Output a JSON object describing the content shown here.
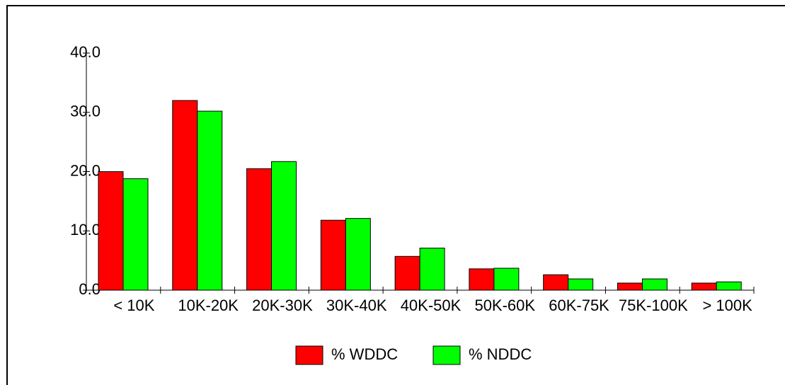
{
  "chart_data": {
    "type": "bar",
    "categories": [
      "< 10K",
      "10K-20K",
      "20K-30K",
      "30K-40K",
      "40K-50K",
      "50K-60K",
      "60K-75K",
      "75K-100K",
      "> 100K"
    ],
    "series": [
      {
        "name": "% WDDC",
        "color": "#ff0000",
        "values": [
          20.0,
          32.0,
          20.5,
          11.8,
          5.7,
          3.6,
          2.6,
          1.2,
          1.2
        ]
      },
      {
        "name": "% NDDC",
        "color": "#00ff00",
        "values": [
          18.8,
          30.2,
          21.7,
          12.1,
          7.1,
          3.7,
          1.9,
          1.9,
          1.4
        ]
      }
    ],
    "ylim": [
      0,
      40
    ],
    "yticks": [
      {
        "value": 0,
        "label": "0.0"
      },
      {
        "value": 10,
        "label": "10.0"
      },
      {
        "value": 20,
        "label": "20.0"
      },
      {
        "value": 30,
        "label": "30.0"
      },
      {
        "value": 40,
        "label": "40.0"
      }
    ],
    "legend": "bottom"
  }
}
